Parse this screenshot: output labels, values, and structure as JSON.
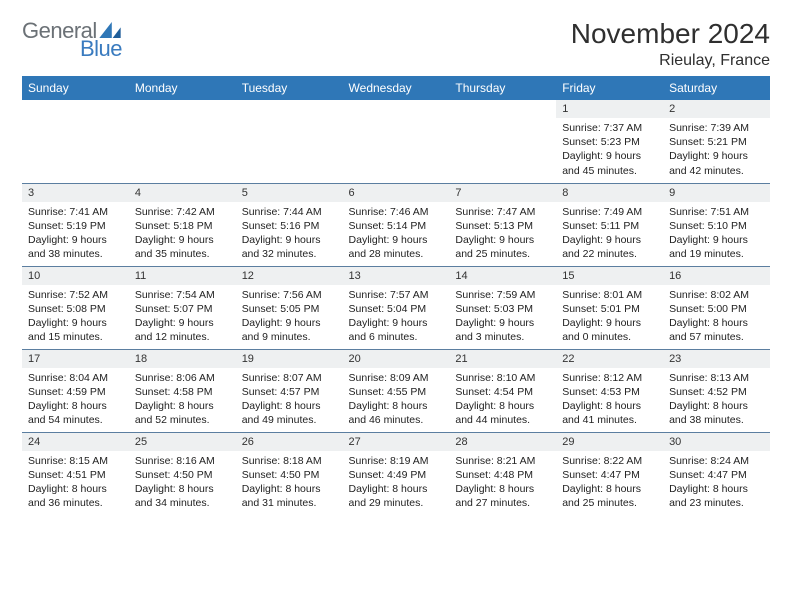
{
  "brand": {
    "general": "General",
    "blue": "Blue"
  },
  "title": "November 2024",
  "location": "Rieulay, France",
  "colors": {
    "header_bg": "#2f77b7",
    "header_text": "#ffffff",
    "daynum_bg": "#eef0f1",
    "row_border": "#5b7ea0",
    "brand_gray": "#6b7176",
    "brand_blue": "#3a7bbf"
  },
  "weekdays": [
    "Sunday",
    "Monday",
    "Tuesday",
    "Wednesday",
    "Thursday",
    "Friday",
    "Saturday"
  ],
  "weeks": [
    [
      {
        "n": "",
        "lines": []
      },
      {
        "n": "",
        "lines": []
      },
      {
        "n": "",
        "lines": []
      },
      {
        "n": "",
        "lines": []
      },
      {
        "n": "",
        "lines": []
      },
      {
        "n": "1",
        "lines": [
          "Sunrise: 7:37 AM",
          "Sunset: 5:23 PM",
          "Daylight: 9 hours and 45 minutes."
        ]
      },
      {
        "n": "2",
        "lines": [
          "Sunrise: 7:39 AM",
          "Sunset: 5:21 PM",
          "Daylight: 9 hours and 42 minutes."
        ]
      }
    ],
    [
      {
        "n": "3",
        "lines": [
          "Sunrise: 7:41 AM",
          "Sunset: 5:19 PM",
          "Daylight: 9 hours and 38 minutes."
        ]
      },
      {
        "n": "4",
        "lines": [
          "Sunrise: 7:42 AM",
          "Sunset: 5:18 PM",
          "Daylight: 9 hours and 35 minutes."
        ]
      },
      {
        "n": "5",
        "lines": [
          "Sunrise: 7:44 AM",
          "Sunset: 5:16 PM",
          "Daylight: 9 hours and 32 minutes."
        ]
      },
      {
        "n": "6",
        "lines": [
          "Sunrise: 7:46 AM",
          "Sunset: 5:14 PM",
          "Daylight: 9 hours and 28 minutes."
        ]
      },
      {
        "n": "7",
        "lines": [
          "Sunrise: 7:47 AM",
          "Sunset: 5:13 PM",
          "Daylight: 9 hours and 25 minutes."
        ]
      },
      {
        "n": "8",
        "lines": [
          "Sunrise: 7:49 AM",
          "Sunset: 5:11 PM",
          "Daylight: 9 hours and 22 minutes."
        ]
      },
      {
        "n": "9",
        "lines": [
          "Sunrise: 7:51 AM",
          "Sunset: 5:10 PM",
          "Daylight: 9 hours and 19 minutes."
        ]
      }
    ],
    [
      {
        "n": "10",
        "lines": [
          "Sunrise: 7:52 AM",
          "Sunset: 5:08 PM",
          "Daylight: 9 hours and 15 minutes."
        ]
      },
      {
        "n": "11",
        "lines": [
          "Sunrise: 7:54 AM",
          "Sunset: 5:07 PM",
          "Daylight: 9 hours and 12 minutes."
        ]
      },
      {
        "n": "12",
        "lines": [
          "Sunrise: 7:56 AM",
          "Sunset: 5:05 PM",
          "Daylight: 9 hours and 9 minutes."
        ]
      },
      {
        "n": "13",
        "lines": [
          "Sunrise: 7:57 AM",
          "Sunset: 5:04 PM",
          "Daylight: 9 hours and 6 minutes."
        ]
      },
      {
        "n": "14",
        "lines": [
          "Sunrise: 7:59 AM",
          "Sunset: 5:03 PM",
          "Daylight: 9 hours and 3 minutes."
        ]
      },
      {
        "n": "15",
        "lines": [
          "Sunrise: 8:01 AM",
          "Sunset: 5:01 PM",
          "Daylight: 9 hours and 0 minutes."
        ]
      },
      {
        "n": "16",
        "lines": [
          "Sunrise: 8:02 AM",
          "Sunset: 5:00 PM",
          "Daylight: 8 hours and 57 minutes."
        ]
      }
    ],
    [
      {
        "n": "17",
        "lines": [
          "Sunrise: 8:04 AM",
          "Sunset: 4:59 PM",
          "Daylight: 8 hours and 54 minutes."
        ]
      },
      {
        "n": "18",
        "lines": [
          "Sunrise: 8:06 AM",
          "Sunset: 4:58 PM",
          "Daylight: 8 hours and 52 minutes."
        ]
      },
      {
        "n": "19",
        "lines": [
          "Sunrise: 8:07 AM",
          "Sunset: 4:57 PM",
          "Daylight: 8 hours and 49 minutes."
        ]
      },
      {
        "n": "20",
        "lines": [
          "Sunrise: 8:09 AM",
          "Sunset: 4:55 PM",
          "Daylight: 8 hours and 46 minutes."
        ]
      },
      {
        "n": "21",
        "lines": [
          "Sunrise: 8:10 AM",
          "Sunset: 4:54 PM",
          "Daylight: 8 hours and 44 minutes."
        ]
      },
      {
        "n": "22",
        "lines": [
          "Sunrise: 8:12 AM",
          "Sunset: 4:53 PM",
          "Daylight: 8 hours and 41 minutes."
        ]
      },
      {
        "n": "23",
        "lines": [
          "Sunrise: 8:13 AM",
          "Sunset: 4:52 PM",
          "Daylight: 8 hours and 38 minutes."
        ]
      }
    ],
    [
      {
        "n": "24",
        "lines": [
          "Sunrise: 8:15 AM",
          "Sunset: 4:51 PM",
          "Daylight: 8 hours and 36 minutes."
        ]
      },
      {
        "n": "25",
        "lines": [
          "Sunrise: 8:16 AM",
          "Sunset: 4:50 PM",
          "Daylight: 8 hours and 34 minutes."
        ]
      },
      {
        "n": "26",
        "lines": [
          "Sunrise: 8:18 AM",
          "Sunset: 4:50 PM",
          "Daylight: 8 hours and 31 minutes."
        ]
      },
      {
        "n": "27",
        "lines": [
          "Sunrise: 8:19 AM",
          "Sunset: 4:49 PM",
          "Daylight: 8 hours and 29 minutes."
        ]
      },
      {
        "n": "28",
        "lines": [
          "Sunrise: 8:21 AM",
          "Sunset: 4:48 PM",
          "Daylight: 8 hours and 27 minutes."
        ]
      },
      {
        "n": "29",
        "lines": [
          "Sunrise: 8:22 AM",
          "Sunset: 4:47 PM",
          "Daylight: 8 hours and 25 minutes."
        ]
      },
      {
        "n": "30",
        "lines": [
          "Sunrise: 8:24 AM",
          "Sunset: 4:47 PM",
          "Daylight: 8 hours and 23 minutes."
        ]
      }
    ]
  ]
}
